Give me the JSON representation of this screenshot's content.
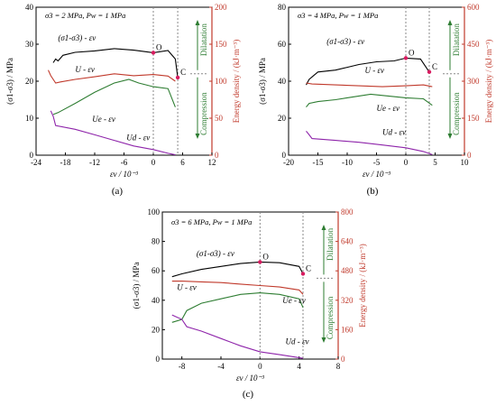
{
  "chart_data": [
    {
      "type": "line",
      "panel_label": "(a)",
      "condition": "σ3 = 2 MPa, Pw = 1 MPa",
      "xlabel": "εv / 10⁻³",
      "ylabel_left": "(σ1-σ3) / MPa",
      "ylabel_right": "Energy density / (kJ·m⁻³)",
      "xlim": [
        -24,
        12
      ],
      "ylim_left": [
        0,
        40
      ],
      "ylim_right": [
        0,
        200
      ],
      "xticks": [
        "-24",
        "-18",
        "-12",
        "-6",
        "0",
        "6",
        "12"
      ],
      "yticks_left": [
        "0",
        "10",
        "20",
        "30",
        "40"
      ],
      "yticks_right": [
        "0",
        "50",
        "100",
        "150",
        "200"
      ],
      "markers": {
        "O": "O",
        "C": "C"
      },
      "zones": {
        "dilatation": "Dilatation",
        "compression": "Compression"
      },
      "series": [
        {
          "name": "(σ1-σ3) - εv",
          "color": "#000000",
          "axis": "left",
          "label_x": -19.5,
          "label_y": 31,
          "x": [
            -20.5,
            -20,
            -19.5,
            -18.5,
            -16,
            -12,
            -8,
            -4,
            0,
            3,
            4.5,
            5
          ],
          "y": [
            25,
            26,
            25.5,
            27,
            27.8,
            28.2,
            28.8,
            28.4,
            27.7,
            28.3,
            26,
            21
          ]
        },
        {
          "name": "U - εv",
          "color": "#c0392b",
          "axis": "left",
          "label_x": -16,
          "label_y": 22.5,
          "x": [
            -21.5,
            -21,
            -20,
            -19,
            -16,
            -12,
            -8,
            -4,
            0,
            3,
            4.5
          ],
          "y": [
            23,
            21.5,
            19.5,
            19.8,
            20.5,
            21.2,
            22,
            21.5,
            21.8,
            21.4,
            20
          ]
        },
        {
          "name": "Ue - εv",
          "color": "#2e7d32",
          "axis": "left",
          "label_x": -12.5,
          "label_y": 9,
          "x": [
            -20.5,
            -19.5,
            -16,
            -12,
            -8,
            -5,
            -3,
            0,
            3,
            4.5
          ],
          "y": [
            11,
            11.5,
            14,
            17,
            19.5,
            20.5,
            19.5,
            18.5,
            18,
            13
          ]
        },
        {
          "name": "Ud - εv",
          "color": "#8e24aa",
          "axis": "left",
          "label_x": -5.5,
          "label_y": 4,
          "x": [
            -21,
            -20.5,
            -20,
            -16,
            -12,
            -8,
            -4,
            0,
            3,
            4.5
          ],
          "y": [
            12,
            10.5,
            8,
            7,
            5.5,
            4,
            2.5,
            1.5,
            0.5,
            0.1
          ]
        }
      ]
    },
    {
      "type": "line",
      "panel_label": "(b)",
      "condition": "σ3 = 4 MPa, Pw = 1 MPa",
      "xlabel": "εv / 10⁻³",
      "ylabel_left": "(σ1-σ3) / MPa",
      "ylabel_right": "Energy density / (kJ·m⁻³)",
      "xlim": [
        -20,
        10
      ],
      "ylim_left": [
        0,
        80
      ],
      "ylim_right": [
        0,
        600
      ],
      "xticks": [
        "-20",
        "-15",
        "-10",
        "-5",
        "0",
        "5",
        "10"
      ],
      "yticks_left": [
        "0",
        "20",
        "40",
        "60",
        "80"
      ],
      "yticks_right": [
        "0",
        "150",
        "300",
        "450",
        "600"
      ],
      "markers": {
        "O": "O",
        "C": "C"
      },
      "zones": {
        "dilatation": "Dilatation",
        "compression": "Compression"
      },
      "series": [
        {
          "name": "(σ1-σ3) - εv",
          "color": "#000000",
          "axis": "left",
          "label_x": -13.5,
          "label_y": 60,
          "x": [
            -17,
            -16.5,
            -15,
            -12,
            -10,
            -8,
            -5,
            -2,
            0,
            2.5,
            4
          ],
          "y": [
            38,
            41,
            45,
            46,
            47.5,
            49,
            50.5,
            51,
            52.5,
            52,
            45
          ]
        },
        {
          "name": "U - εv",
          "color": "#c0392b",
          "axis": "left",
          "label_x": -7,
          "label_y": 44.5,
          "x": [
            -17,
            -16,
            -12,
            -8,
            -4,
            0,
            3,
            4.5
          ],
          "y": [
            39,
            38.5,
            38,
            37.5,
            37,
            37.5,
            38,
            37
          ]
        },
        {
          "name": "Ue - εv",
          "color": "#2e7d32",
          "axis": "left",
          "label_x": -5,
          "label_y": 24,
          "x": [
            -17,
            -16.5,
            -15,
            -12,
            -10,
            -6,
            -3,
            0,
            3,
            4.5
          ],
          "y": [
            26,
            28,
            29,
            30,
            31,
            33,
            32,
            31,
            30.5,
            27
          ]
        },
        {
          "name": "Ud - εv",
          "color": "#8e24aa",
          "axis": "left",
          "label_x": -4,
          "label_y": 11,
          "x": [
            -17,
            -16.5,
            -16,
            -12,
            -8,
            -4,
            0,
            3,
            4.5
          ],
          "y": [
            13,
            11,
            9,
            8,
            7,
            5.5,
            4,
            2,
            0.3
          ]
        }
      ]
    },
    {
      "type": "line",
      "panel_label": "(c)",
      "condition": "σ3 = 6 MPa, Pw = 1 MPa",
      "xlabel": "εv / 10⁻³",
      "ylabel_left": "(σ1-σ3) / MPa",
      "ylabel_right": "Energy density / (kJ·m⁻³)",
      "xlim": [
        -10,
        8
      ],
      "ylim_left": [
        0,
        100
      ],
      "ylim_right": [
        0,
        800
      ],
      "xticks": [
        "-8",
        "-4",
        "0",
        "4",
        "8"
      ],
      "yticks_left": [
        "0",
        "20",
        "40",
        "60",
        "80",
        "100"
      ],
      "yticks_right": [
        "0",
        "160",
        "320",
        "480",
        "640",
        "800"
      ],
      "markers": {
        "O": "O",
        "C": "C"
      },
      "zones": {
        "dilatation": "Dilatation",
        "compression": "Compression"
      },
      "series": [
        {
          "name": "(σ1-σ3) - εv",
          "color": "#000000",
          "axis": "left",
          "label_x": -6.5,
          "label_y": 70,
          "x": [
            -9,
            -8,
            -6,
            -4,
            -2,
            0,
            2,
            4,
            4.4
          ],
          "y": [
            56,
            58,
            61,
            63,
            65,
            66,
            65.5,
            63,
            58
          ]
        },
        {
          "name": "U - εv",
          "color": "#c0392b",
          "axis": "left",
          "label_x": -8.5,
          "label_y": 47,
          "x": [
            -9,
            -8,
            -6,
            -4,
            -2,
            0,
            2,
            4,
            4.4
          ],
          "y": [
            53,
            53,
            52.5,
            52,
            51,
            50,
            49,
            47,
            44
          ]
        },
        {
          "name": "Ue - εv",
          "color": "#2e7d32",
          "axis": "left",
          "label_x": 2.3,
          "label_y": 38,
          "x": [
            -9,
            -8,
            -7.5,
            -6,
            -4,
            -2,
            0,
            2,
            4,
            4.4
          ],
          "y": [
            25,
            27,
            33,
            38,
            41,
            44,
            45,
            44,
            41,
            35
          ]
        },
        {
          "name": "Ud - εv",
          "color": "#8e24aa",
          "axis": "left",
          "label_x": 2.6,
          "label_y": 10,
          "x": [
            -9,
            -8,
            -7.5,
            -6,
            -4,
            -2,
            0,
            2,
            4,
            4.4
          ],
          "y": [
            30,
            27,
            22,
            19,
            14,
            9,
            5,
            3,
            1,
            0.5
          ]
        }
      ]
    }
  ]
}
